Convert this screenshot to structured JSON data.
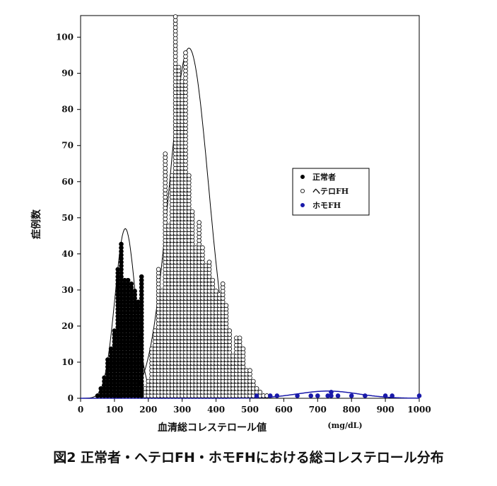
{
  "chart_data": {
    "type": "scatter",
    "caption": "図2 正常者・ヘテロFH・ホモFHにおける総コレステロール分布",
    "xlabel": "血清総コレステロール値",
    "xunit": "(mg/dL)",
    "ylabel": "症例数",
    "xlim": [
      0,
      1000
    ],
    "ylim": [
      0,
      106
    ],
    "xticks": [
      0,
      100,
      200,
      300,
      400,
      500,
      600,
      700,
      800,
      900,
      1000
    ],
    "yticks": [
      0,
      10,
      20,
      30,
      40,
      50,
      60,
      70,
      80,
      90,
      100
    ],
    "legend_position": "right-middle",
    "series": [
      {
        "name": "正常者",
        "marker": "filled-black",
        "color": "#000000",
        "x": [
          50,
          60,
          70,
          80,
          90,
          100,
          110,
          120,
          130,
          140,
          150,
          160,
          170,
          180
        ],
        "y": [
          1,
          3,
          6,
          11,
          14,
          19,
          36,
          43,
          33,
          33,
          32,
          30,
          27,
          34
        ],
        "fit_curve": {
          "peak_x": 132,
          "peak_y": 47,
          "sd": 30
        }
      },
      {
        "name": "ヘテロFH",
        "marker": "open-circle",
        "color": "#000000",
        "x": [
          170,
          180,
          190,
          200,
          210,
          220,
          230,
          240,
          250,
          260,
          270,
          280,
          290,
          300,
          310,
          320,
          330,
          340,
          350,
          360,
          370,
          380,
          390,
          400,
          410,
          420,
          430,
          440,
          450,
          460,
          470,
          480,
          490,
          500,
          510,
          520,
          530,
          540,
          550
        ],
        "y": [
          1,
          2,
          3,
          5,
          14,
          19,
          36,
          30,
          68,
          48,
          62,
          106,
          92,
          88,
          96,
          62,
          52,
          42,
          49,
          42,
          37,
          38,
          33,
          30,
          29,
          32,
          26,
          19,
          12,
          17,
          17,
          14,
          8,
          8,
          5,
          3,
          2,
          1,
          1
        ],
        "fit_curve": {
          "peak_x": 320,
          "peak_y": 97,
          "sd": 58
        }
      },
      {
        "name": "ホモFH",
        "marker": "filled-blue",
        "color": "#1a1aaa",
        "x": [
          520,
          560,
          580,
          600,
          640,
          680,
          700,
          730,
          740,
          760,
          800,
          840,
          900,
          920,
          1000
        ],
        "y": [
          1,
          1,
          1,
          0,
          1,
          1,
          1,
          1,
          2,
          1,
          1,
          1,
          1,
          1,
          1
        ],
        "fit_curve": {
          "peak_x": 730,
          "peak_y": 2,
          "sd": 90
        }
      }
    ]
  }
}
